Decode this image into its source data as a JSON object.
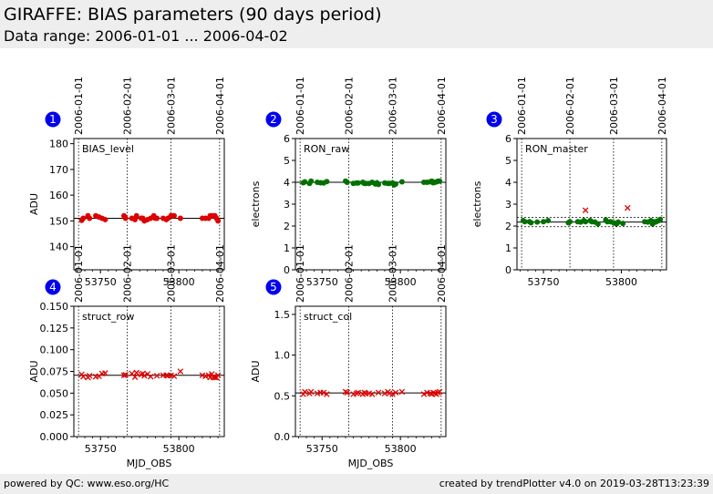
{
  "header": {
    "title": "GIRAFFE: BIAS parameters (90 days period)",
    "subtitle": "Data range: 2006-01-01 ... 2006-04-02"
  },
  "footer": {
    "left": "powered by QC: www.eso.org/HC",
    "right": "created by trendPlotter v4.0 on 2019-03-28T13:23:39"
  },
  "colors": {
    "red": "#dd0000",
    "green": "#007000",
    "badge": "#0000ee",
    "band": "#eeeeee"
  },
  "date_ticks": {
    "labels": [
      "2006-01-01",
      "2006-02-01",
      "2006-03-01",
      "2006-04-01"
    ],
    "mjd": [
      53736,
      53767,
      53795,
      53826
    ]
  },
  "chart_data": [
    {
      "id": 1,
      "badge": "1",
      "type": "scatter",
      "label": "BIAS_level",
      "ylabel": "ADU",
      "xlabel": "",
      "xlim": [
        53733,
        53829
      ],
      "ylim": [
        131,
        182
      ],
      "yticks": [
        140,
        150,
        160,
        170,
        180
      ],
      "ytick_labels": [
        "140",
        "150",
        "160",
        "170",
        "180"
      ],
      "xticks": [
        53750,
        53800
      ],
      "xtick_labels": [
        "53750",
        "53800"
      ],
      "ref_lines": [
        151
      ],
      "series": [
        {
          "marker": "dot",
          "color": "red",
          "x": [
            53738,
            53739,
            53742,
            53743,
            53747,
            53749,
            53751,
            53753,
            53765,
            53766,
            53770,
            53772,
            53773,
            53776,
            53777,
            53778,
            53780,
            53782,
            53784,
            53785,
            53786,
            53790,
            53792,
            53793,
            53795,
            53796,
            53797,
            53801,
            53815,
            53817,
            53819,
            53820,
            53821,
            53822,
            53823,
            53824,
            53825
          ],
          "y": [
            150.2,
            151,
            152,
            151,
            152,
            151.5,
            151,
            150.5,
            152,
            151,
            151,
            150.5,
            152,
            151,
            151,
            150,
            150.5,
            151,
            152,
            151,
            151,
            151,
            150.5,
            151,
            152,
            152,
            152,
            151,
            151,
            151,
            151,
            152,
            152,
            152,
            152,
            151,
            150
          ]
        }
      ]
    },
    {
      "id": 2,
      "badge": "2",
      "type": "scatter",
      "label": "RON_raw",
      "ylabel": "electrons",
      "xlabel": "",
      "xlim": [
        53733,
        53829
      ],
      "ylim": [
        0,
        6
      ],
      "yticks": [
        0,
        1,
        2,
        3,
        4,
        5,
        6
      ],
      "ytick_labels": [
        "0",
        "1",
        "2",
        "3",
        "4",
        "5",
        "6"
      ],
      "xticks": [
        53750,
        53800
      ],
      "xtick_labels": [
        "53750",
        "53800"
      ],
      "ref_lines": [
        4.0
      ],
      "series": [
        {
          "marker": "dot",
          "color": "green",
          "x": [
            53738,
            53739,
            53742,
            53743,
            53747,
            53749,
            53751,
            53753,
            53765,
            53766,
            53770,
            53772,
            53773,
            53776,
            53777,
            53778,
            53780,
            53782,
            53784,
            53785,
            53786,
            53790,
            53792,
            53793,
            53795,
            53796,
            53797,
            53801,
            53815,
            53817,
            53819,
            53820,
            53821,
            53822,
            53823,
            53824,
            53825
          ],
          "y": [
            3.98,
            4.02,
            3.95,
            4.05,
            4.0,
            3.98,
            3.97,
            4.03,
            4.05,
            4.0,
            3.95,
            3.97,
            3.97,
            4.0,
            3.95,
            3.95,
            3.95,
            4.0,
            3.92,
            3.98,
            3.9,
            3.97,
            3.95,
            3.95,
            3.97,
            3.88,
            3.92,
            4.02,
            4.0,
            4.0,
            4.02,
            4.05,
            3.98,
            4.0,
            4.02,
            4.05,
            4.05
          ]
        }
      ]
    },
    {
      "id": 3,
      "badge": "3",
      "type": "scatter",
      "label": "RON_master",
      "ylabel": "electrons",
      "xlabel": "",
      "xlim": [
        53733,
        53829
      ],
      "ylim": [
        0,
        6
      ],
      "yticks": [
        0,
        1,
        2,
        3,
        4,
        5,
        6
      ],
      "ytick_labels": [
        "0",
        "1",
        "2",
        "3",
        "4",
        "5",
        "6"
      ],
      "xticks": [
        53750,
        53800
      ],
      "xtick_labels": [
        "53750",
        "53800"
      ],
      "ref_lines": [
        2.18
      ],
      "band_lines": [
        1.97,
        2.4
      ],
      "series": [
        {
          "marker": "dot",
          "color": "green",
          "x": [
            53737,
            53738,
            53741,
            53742,
            53746,
            53750,
            53753,
            53766,
            53767,
            53772,
            53774,
            53776,
            53777,
            53780,
            53781,
            53783,
            53785,
            53790,
            53791,
            53793,
            53795,
            53797,
            53798,
            53801,
            53815,
            53817,
            53819,
            53820,
            53821,
            53822,
            53823,
            53824,
            53825
          ],
          "y": [
            2.25,
            2.2,
            2.2,
            2.15,
            2.18,
            2.2,
            2.25,
            2.15,
            2.2,
            2.2,
            2.18,
            2.25,
            2.2,
            2.25,
            2.2,
            2.18,
            2.1,
            2.28,
            2.2,
            2.2,
            2.15,
            2.1,
            2.18,
            2.12,
            2.2,
            2.18,
            2.25,
            2.1,
            2.2,
            2.18,
            2.22,
            2.25,
            2.3
          ]
        },
        {
          "marker": "x",
          "color": "red",
          "x": [
            53777,
            53804
          ],
          "y": [
            2.72,
            2.83
          ]
        }
      ]
    },
    {
      "id": 4,
      "badge": "4",
      "type": "scatter",
      "label": "struct_row",
      "ylabel": "ADU",
      "xlabel": "MJD_OBS",
      "xlim": [
        53733,
        53829
      ],
      "ylim": [
        0,
        0.15
      ],
      "yticks": [
        0,
        0.025,
        0.05,
        0.075,
        0.1,
        0.125,
        0.15
      ],
      "ytick_labels": [
        "0.000",
        "0.025",
        "0.050",
        "0.075",
        "0.100",
        "0.125",
        "0.150"
      ],
      "xticks": [
        53750,
        53800
      ],
      "xtick_labels": [
        "53750",
        "53800"
      ],
      "ref_lines": [
        0.0705
      ],
      "series": [
        {
          "marker": "x",
          "color": "red",
          "x": [
            53738,
            53739,
            53742,
            53743,
            53747,
            53749,
            53751,
            53753,
            53765,
            53766,
            53770,
            53772,
            53773,
            53776,
            53777,
            53778,
            53780,
            53782,
            53786,
            53790,
            53792,
            53793,
            53795,
            53797,
            53801,
            53815,
            53817,
            53819,
            53820,
            53821,
            53822,
            53823,
            53824,
            53825
          ],
          "y": [
            0.0715,
            0.069,
            0.068,
            0.07,
            0.069,
            0.0695,
            0.0725,
            0.073,
            0.0705,
            0.071,
            0.0725,
            0.0685,
            0.0735,
            0.0715,
            0.0725,
            0.07,
            0.072,
            0.069,
            0.07,
            0.0705,
            0.0705,
            0.07,
            0.0705,
            0.0695,
            0.075,
            0.0705,
            0.0695,
            0.0705,
            0.068,
            0.072,
            0.0685,
            0.068,
            0.068,
            0.0705
          ]
        }
      ]
    },
    {
      "id": 5,
      "badge": "5",
      "type": "scatter",
      "label": "struct_col",
      "ylabel": "ADU",
      "xlabel": "MJD_OBS",
      "xlim": [
        53733,
        53829
      ],
      "ylim": [
        0,
        1.6
      ],
      "yticks": [
        0,
        0.5,
        1.0,
        1.5
      ],
      "ytick_labels": [
        "0.0",
        "0.5",
        "1.0",
        "1.5"
      ],
      "xticks": [
        53750,
        53800
      ],
      "xtick_labels": [
        "53750",
        "53800"
      ],
      "ref_lines": [
        0.535
      ],
      "series": [
        {
          "marker": "x",
          "color": "red",
          "x": [
            53738,
            53739,
            53742,
            53743,
            53747,
            53749,
            53751,
            53753,
            53765,
            53766,
            53770,
            53772,
            53773,
            53776,
            53777,
            53778,
            53780,
            53782,
            53786,
            53790,
            53792,
            53793,
            53795,
            53797,
            53801,
            53815,
            53817,
            53819,
            53820,
            53821,
            53822,
            53823,
            53824,
            53825
          ],
          "y": [
            0.52,
            0.55,
            0.53,
            0.55,
            0.53,
            0.54,
            0.54,
            0.52,
            0.55,
            0.54,
            0.52,
            0.53,
            0.54,
            0.52,
            0.54,
            0.53,
            0.53,
            0.52,
            0.54,
            0.53,
            0.55,
            0.53,
            0.52,
            0.54,
            0.55,
            0.52,
            0.54,
            0.53,
            0.52,
            0.54,
            0.53,
            0.52,
            0.54,
            0.55
          ]
        }
      ]
    }
  ]
}
